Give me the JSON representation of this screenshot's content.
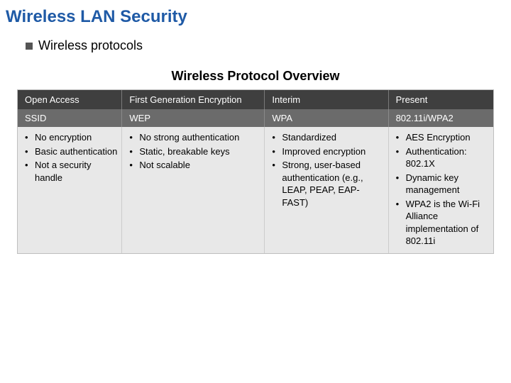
{
  "title": {
    "text": "Wireless LAN Security",
    "color": "#1f5aa6"
  },
  "subtitle": "Wireless protocols",
  "overview_title": "Wireless Protocol Overview",
  "columns": {
    "col1": {
      "h1": "Open Access",
      "h2": "SSID"
    },
    "col2": {
      "h1": "First Generation Encryption",
      "h2": "WEP"
    },
    "col3": {
      "h1": "Interim",
      "h2": "WPA"
    },
    "col4": {
      "h1": "Present",
      "h2": "802.11i/WPA2"
    }
  },
  "cells": {
    "c1": {
      "i0": "No encryption",
      "i1": "Basic authentication",
      "i2": "Not a security handle"
    },
    "c2": {
      "i0": "No strong authentication",
      "i1": "Static, breakable keys",
      "i2": "Not scalable"
    },
    "c3": {
      "i0": "Standardized",
      "i1": "Improved encryption",
      "i2": "Strong, user-based authentication (e.g., LEAP, PEAP, EAP-FAST)"
    },
    "c4": {
      "i0": "AES Encryption",
      "i1": "Authentication: 802.1X",
      "i2": "Dynamic key management",
      "i3": "WPA2 is the Wi-Fi Alliance implementation of 802.11i"
    }
  },
  "style": {
    "header1_bg": "#3f3f3f",
    "header2_bg": "#6b6b6b",
    "body_bg": "#e8e8e8",
    "border": "#bfbfbf"
  }
}
